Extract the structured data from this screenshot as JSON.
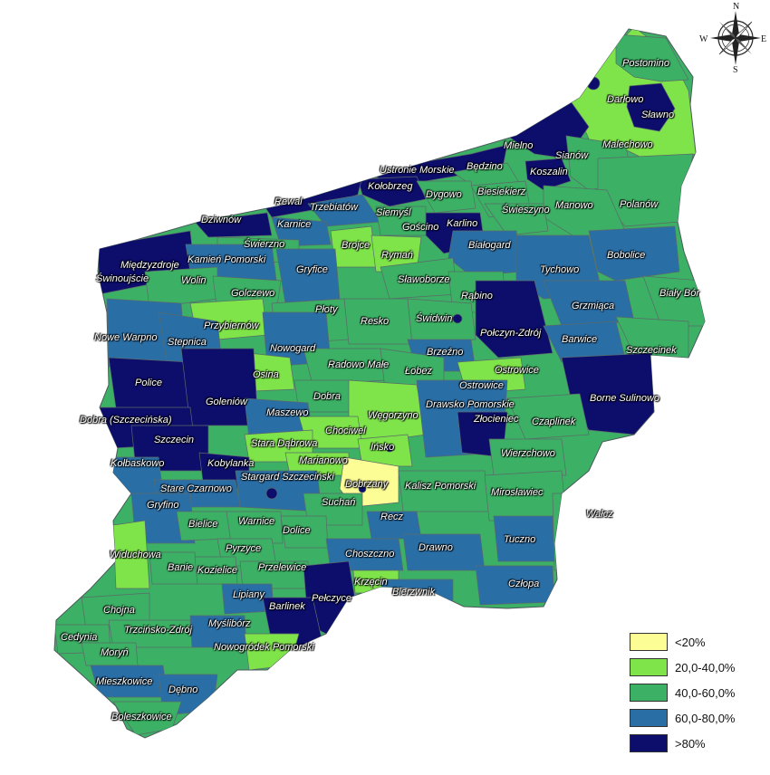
{
  "compass": {
    "n": "N",
    "s": "S",
    "e": "E",
    "w": "W"
  },
  "colors": {
    "lt20": "#fdfd96",
    "c20_40": "#7fe44a",
    "c40_60": "#3cb064",
    "c60_80": "#2a6ea6",
    "gt80": "#0d0d6b",
    "border": "#5a6a6a"
  },
  "legend": [
    {
      "label": "<20%",
      "class": "lt20"
    },
    {
      "label": "20,0-40,0%",
      "class": "c20_40"
    },
    {
      "label": "40,0-60,0%",
      "class": "c40_60"
    },
    {
      "label": "60,0-80,0%",
      "class": "c60_80"
    },
    {
      "label": ">80%",
      "class": "gt80"
    }
  ],
  "places": [
    {
      "name": "Postomino",
      "cls": "c40_60"
    },
    {
      "name": "Darłowo",
      "cls": "c20_40"
    },
    {
      "name": "Sławno",
      "cls": "gt80"
    },
    {
      "name": "Malechowo",
      "cls": "c20_40"
    },
    {
      "name": "Mielno",
      "cls": "gt80"
    },
    {
      "name": "Sianów",
      "cls": "c40_60"
    },
    {
      "name": "Koszalin",
      "cls": "gt80"
    },
    {
      "name": "Ustronie Morskie",
      "cls": "gt80"
    },
    {
      "name": "Będzino",
      "cls": "c40_60"
    },
    {
      "name": "Kołobrzeg",
      "cls": "gt80"
    },
    {
      "name": "Dygowo",
      "cls": "c40_60"
    },
    {
      "name": "Biesiekierz",
      "cls": "c40_60"
    },
    {
      "name": "Manowo",
      "cls": "c40_60"
    },
    {
      "name": "Polanów",
      "cls": "c40_60"
    },
    {
      "name": "Rewal",
      "cls": "gt80"
    },
    {
      "name": "Trzebiatów",
      "cls": "c60_80"
    },
    {
      "name": "Siemyśl",
      "cls": "c40_60"
    },
    {
      "name": "Gościno",
      "cls": "c40_60"
    },
    {
      "name": "Karlino",
      "cls": "gt80"
    },
    {
      "name": "Świeszyno",
      "cls": "c40_60"
    },
    {
      "name": "Dziwnów",
      "cls": "gt80"
    },
    {
      "name": "Karnice",
      "cls": "c60_80"
    },
    {
      "name": "Białogard",
      "cls": "c60_80"
    },
    {
      "name": "Świerzno",
      "cls": "c40_60"
    },
    {
      "name": "Brojce",
      "cls": "c20_40"
    },
    {
      "name": "Rymań",
      "cls": "c20_40"
    },
    {
      "name": "Tychowo",
      "cls": "c60_80"
    },
    {
      "name": "Bobolice",
      "cls": "c60_80"
    },
    {
      "name": "Międzyzdroje",
      "cls": "gt80"
    },
    {
      "name": "Kamień Pomorski",
      "cls": "c60_80"
    },
    {
      "name": "Świnoujście",
      "cls": "gt80"
    },
    {
      "name": "Gryfice",
      "cls": "c60_80"
    },
    {
      "name": "Sławoborze",
      "cls": "c40_60"
    },
    {
      "name": "Wolin",
      "cls": "c40_60"
    },
    {
      "name": "Golczewo",
      "cls": "c40_60"
    },
    {
      "name": "Rąbino",
      "cls": "c40_60"
    },
    {
      "name": "Biały Bór",
      "cls": "c40_60"
    },
    {
      "name": "Grzmiąca",
      "cls": "c60_80"
    },
    {
      "name": "Przybiernów",
      "cls": "c20_40"
    },
    {
      "name": "Płoty",
      "cls": "c40_60"
    },
    {
      "name": "Resko",
      "cls": "c40_60"
    },
    {
      "name": "Świdwin",
      "cls": "c40_60"
    },
    {
      "name": "Połczyn-Zdrój",
      "cls": "gt80"
    },
    {
      "name": "Nowe Warpno",
      "cls": "c60_80"
    },
    {
      "name": "Stepnica",
      "cls": "c60_80"
    },
    {
      "name": "Barwice",
      "cls": "c60_80"
    },
    {
      "name": "Nowogard",
      "cls": "c60_80"
    },
    {
      "name": "Szczecinek",
      "cls": "c60_80"
    },
    {
      "name": "Brzeźno",
      "cls": "c60_80"
    },
    {
      "name": "Radowo Małe",
      "cls": "c40_60"
    },
    {
      "name": "Łobez",
      "cls": "c40_60"
    },
    {
      "name": "Ostrowice",
      "cls": "c20_40"
    },
    {
      "name": "Osina",
      "cls": "c20_40"
    },
    {
      "name": "Police",
      "cls": "gt80"
    },
    {
      "name": "Goleniów",
      "cls": "gt80"
    },
    {
      "name": "Dobra",
      "cls": "c40_60"
    },
    {
      "name": "Drawsko Pomorskie",
      "cls": "c60_80"
    },
    {
      "name": "Borne Sulinowo",
      "cls": "gt80"
    },
    {
      "name": "Maszewo",
      "cls": "c60_80"
    },
    {
      "name": "Węgorzyno",
      "cls": "c20_40"
    },
    {
      "name": "Złocieniec",
      "cls": "gt80"
    },
    {
      "name": "Czaplinek",
      "cls": "c40_60"
    },
    {
      "name": "Dobra (Szczecińska)",
      "cls": "gt80"
    },
    {
      "name": "Chociwel",
      "cls": "c20_40"
    },
    {
      "name": "Stara Dąbrowa",
      "cls": "c20_40"
    },
    {
      "name": "Szczecin",
      "cls": "gt80"
    },
    {
      "name": "Ińsko",
      "cls": "c20_40"
    },
    {
      "name": "Wierzchowo",
      "cls": "c40_60"
    },
    {
      "name": "Marianowo",
      "cls": "c20_40"
    },
    {
      "name": "Kołbaskowo",
      "cls": "c60_80"
    },
    {
      "name": "Kobylanka",
      "cls": "gt80"
    },
    {
      "name": "Stargard Szczeciński",
      "cls": "c60_80"
    },
    {
      "name": "Dobrzany",
      "cls": "lt20"
    },
    {
      "name": "Kalisz Pomorski",
      "cls": "c40_60"
    },
    {
      "name": "Mirosławiec",
      "cls": "c40_60"
    },
    {
      "name": "Stare Czarnowo",
      "cls": "c60_80"
    },
    {
      "name": "Suchań",
      "cls": "c40_60"
    },
    {
      "name": "Gryfino",
      "cls": "c60_80"
    },
    {
      "name": "Wałcz",
      "cls": "c40_60"
    },
    {
      "name": "Bielice",
      "cls": "c40_60"
    },
    {
      "name": "Warnice",
      "cls": "c40_60"
    },
    {
      "name": "Dolice",
      "cls": "c40_60"
    },
    {
      "name": "Recz",
      "cls": "c60_80"
    },
    {
      "name": "Tuczno",
      "cls": "c60_80"
    },
    {
      "name": "Widuchowa",
      "cls": "c20_40"
    },
    {
      "name": "Pyrzyce",
      "cls": "c40_60"
    },
    {
      "name": "Choszczno",
      "cls": "c60_80"
    },
    {
      "name": "Drawno",
      "cls": "c60_80"
    },
    {
      "name": "Banie",
      "cls": "c40_60"
    },
    {
      "name": "Kozielice",
      "cls": "c40_60"
    },
    {
      "name": "Przelewice",
      "cls": "c40_60"
    },
    {
      "name": "Człopa",
      "cls": "c60_80"
    },
    {
      "name": "Krzęcin",
      "cls": "c20_40"
    },
    {
      "name": "Bierzwnik",
      "cls": "c60_80"
    },
    {
      "name": "Chojna",
      "cls": "c40_60"
    },
    {
      "name": "Lipiany",
      "cls": "c60_80"
    },
    {
      "name": "Pełczyce",
      "cls": "gt80"
    },
    {
      "name": "Barlinek",
      "cls": "gt80"
    },
    {
      "name": "Cedynia",
      "cls": "c40_60"
    },
    {
      "name": "Trzcińsko-Zdrój",
      "cls": "c40_60"
    },
    {
      "name": "Myślibórz",
      "cls": "c60_80"
    },
    {
      "name": "Moryń",
      "cls": "c40_60"
    },
    {
      "name": "Nowogródek Pomorski",
      "cls": "c20_40"
    },
    {
      "name": "Mieszkowice",
      "cls": "c60_80"
    },
    {
      "name": "Dębno",
      "cls": "c60_80"
    },
    {
      "name": "Boleszkowice",
      "cls": "c40_60"
    }
  ]
}
